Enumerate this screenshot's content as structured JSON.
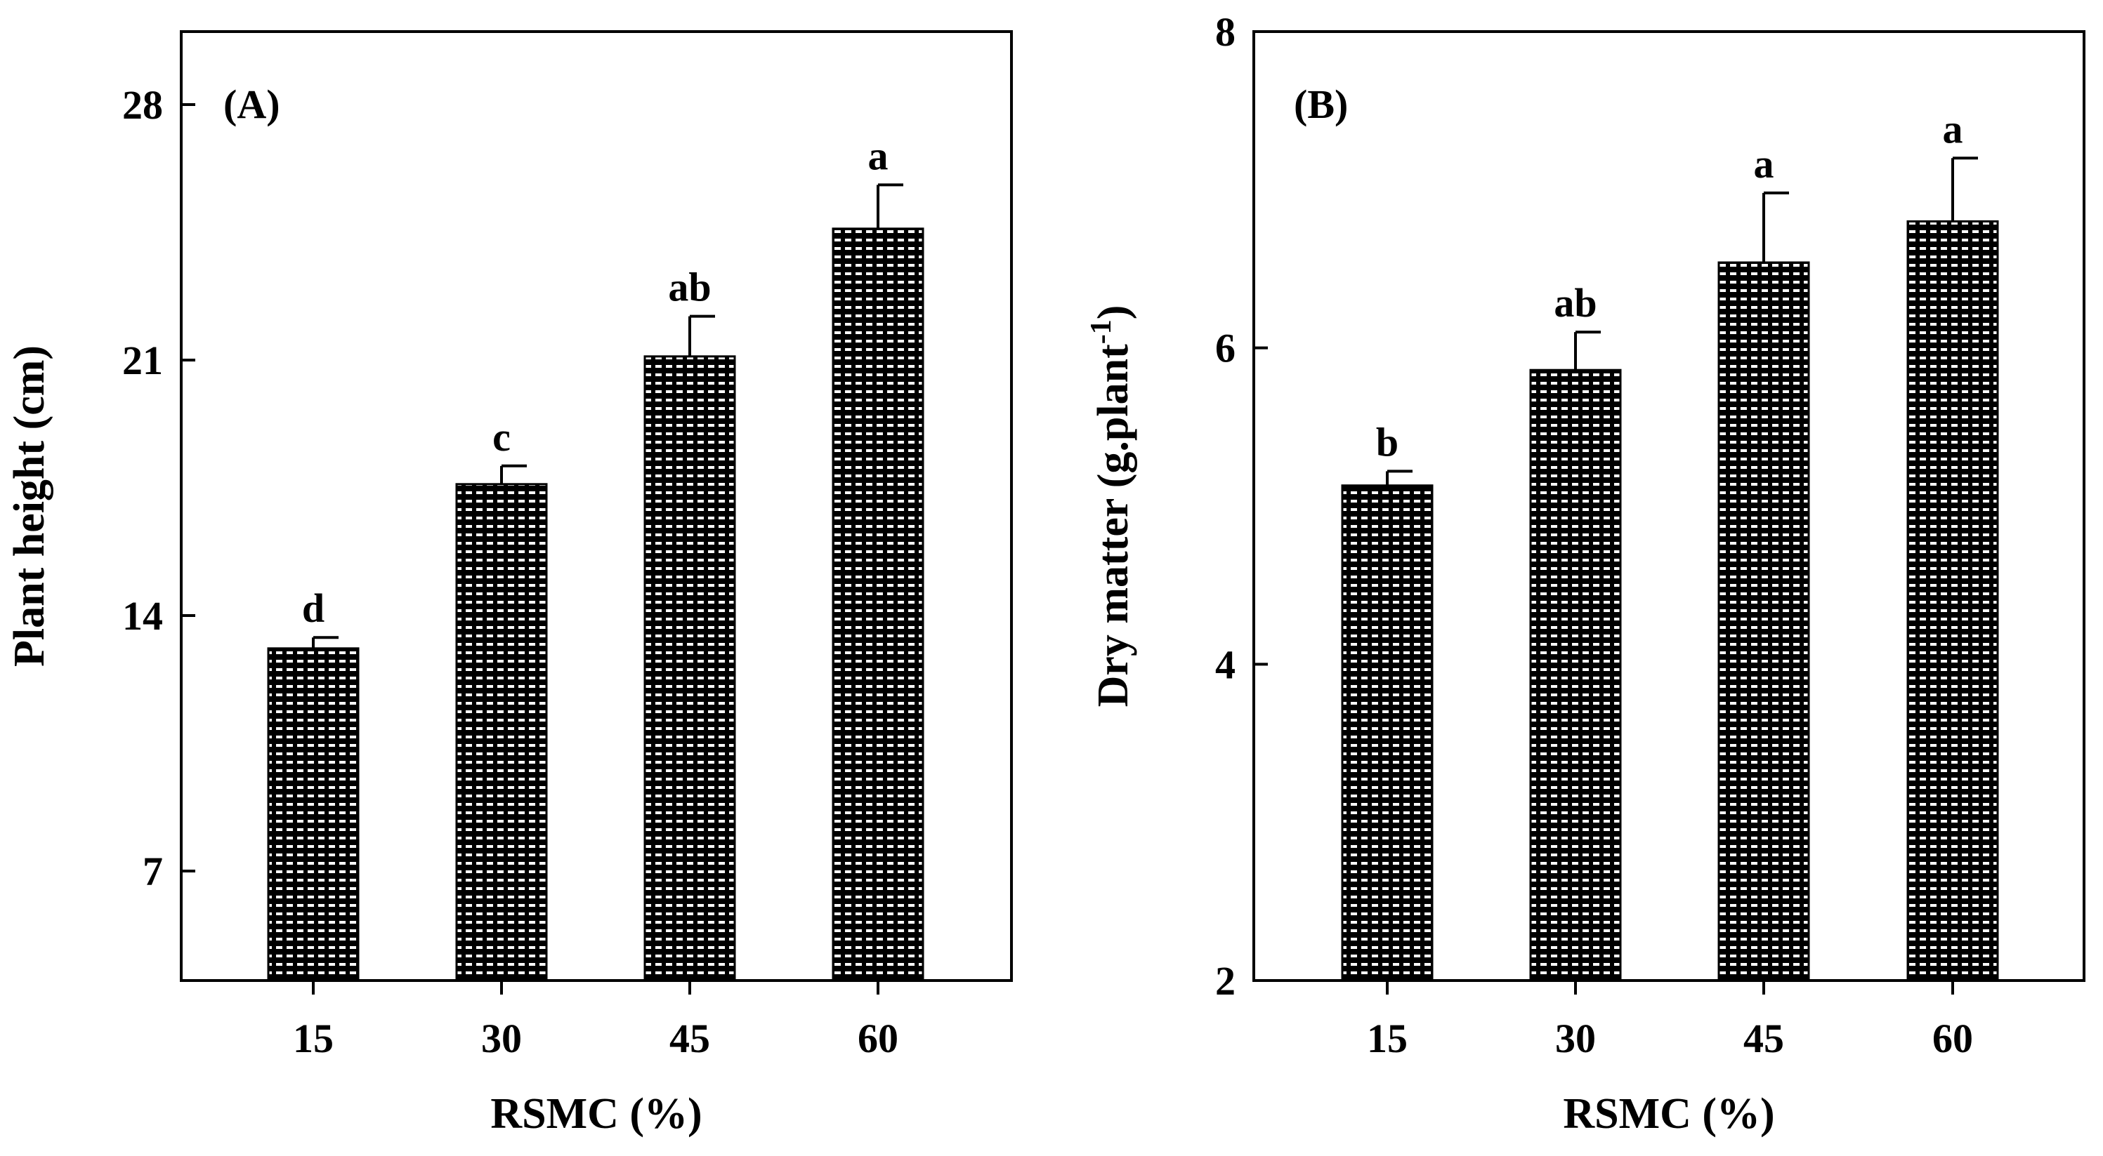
{
  "colors": {
    "bar_fill": "#000000",
    "bar_pattern": "#ffffff",
    "axis": "#000000",
    "background": "#ffffff"
  },
  "chart_data": [
    {
      "type": "bar",
      "panel_label": "(A)",
      "title": "",
      "xlabel": "RSMC (%)",
      "ylabel": "Plant height (cm)",
      "categories": [
        "15",
        "30",
        "45",
        "60"
      ],
      "values": [
        13.1,
        17.6,
        21.1,
        24.6
      ],
      "errors": [
        0.3,
        0.5,
        1.1,
        1.2
      ],
      "significance": [
        "d",
        "c",
        "ab",
        "a"
      ],
      "ylim": [
        4,
        30
      ],
      "yticks": [
        7,
        14,
        21,
        28
      ],
      "ytick_labels": [
        "7",
        "14",
        "21",
        "28"
      ],
      "grid": false
    },
    {
      "type": "bar",
      "panel_label": "(B)",
      "title": "",
      "xlabel": "RSMC (%)",
      "ylabel_main": "Dry matter (g.plant",
      "ylabel_sup": "-1",
      "ylabel_end": ")",
      "categories": [
        "15",
        "30",
        "45",
        "60"
      ],
      "values": [
        5.13,
        5.86,
        6.54,
        6.8
      ],
      "errors": [
        0.09,
        0.24,
        0.44,
        0.4
      ],
      "significance": [
        "b",
        "ab",
        "a",
        "a"
      ],
      "ylim": [
        2,
        8
      ],
      "yticks": [
        2,
        4,
        6,
        8
      ],
      "ytick_labels": [
        "2",
        "4",
        "6",
        "8"
      ],
      "grid": false
    }
  ]
}
